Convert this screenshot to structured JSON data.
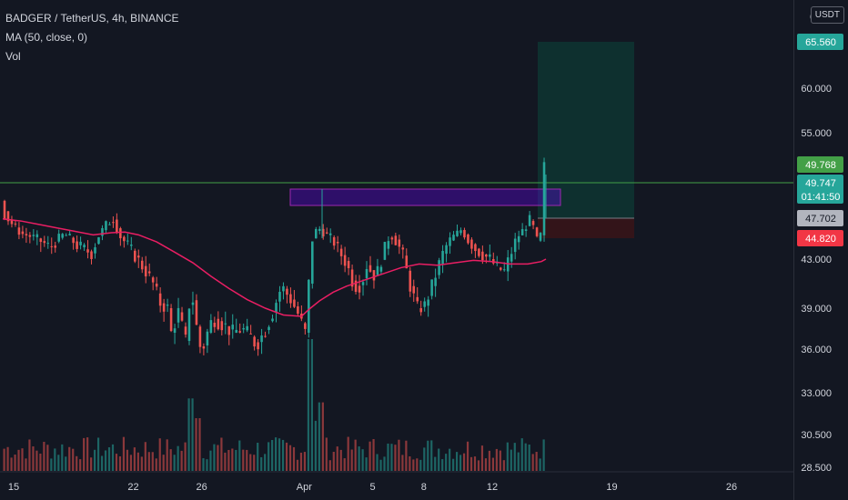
{
  "legend": {
    "symbol": "BADGER / TetherUS, 4h, BINANCE",
    "ma": "MA (50, close, 0)",
    "vol": "Vol"
  },
  "currency_button": "USDT",
  "chart_data": {
    "type": "candlestick",
    "symbol": "BADGER / TetherUS",
    "interval": "4h",
    "exchange": "BINANCE",
    "price_scale": {
      "ticks": [
        {
          "value": 60.0,
          "label": "60.000"
        },
        {
          "value": 55.0,
          "label": "55.000"
        },
        {
          "value": 43.0,
          "label": "43.000"
        },
        {
          "value": 39.0,
          "label": "39.000"
        },
        {
          "value": 36.0,
          "label": "36.000"
        },
        {
          "value": 33.0,
          "label": "33.000"
        },
        {
          "value": 30.5,
          "label": "30.500"
        },
        {
          "value": 28.5,
          "label": "28.500"
        }
      ],
      "top_cut_label": "6"
    },
    "price_badges": [
      {
        "value": 65.56,
        "label": "65.560",
        "color": "#26a69a"
      },
      {
        "value": 49.768,
        "label": "49.768",
        "color": "#43a047"
      },
      {
        "value": 49.747,
        "label": "49.747",
        "sub": "01:41:50",
        "color": "#26a69a"
      },
      {
        "value": 47.702,
        "label": "47.702",
        "color": "#b2b5be"
      },
      {
        "value": 44.82,
        "label": "44.820",
        "color": "#f23645"
      }
    ],
    "time_scale": [
      {
        "label": "15",
        "day": 15
      },
      {
        "label": "22",
        "day": 22
      },
      {
        "label": "26",
        "day": 26
      },
      {
        "label": "Apr",
        "day": 32
      },
      {
        "label": "5",
        "day": 36
      },
      {
        "label": "8",
        "day": 39
      },
      {
        "label": "12",
        "day": 43
      },
      {
        "label": "19",
        "day": 50
      },
      {
        "label": "26",
        "day": 57
      }
    ],
    "horizontal_line": {
      "value": 49.768,
      "color": "#43a047"
    },
    "resistance_box": {
      "top": 49.3,
      "bottom": 47.9,
      "color": "#9c27b0"
    },
    "long_position": {
      "entry": 47.702,
      "target": 65.56,
      "stop": 44.82
    },
    "ma_color": "#e91e63",
    "up_color": "#26a69a",
    "down_color": "#ef5350",
    "candles_start": 48.7,
    "candle_path": [
      [
        48.7,
        0
      ],
      [
        47.5,
        8
      ],
      [
        45.5,
        22
      ],
      [
        44.8,
        40
      ],
      [
        44.0,
        54
      ],
      [
        45.4,
        70
      ],
      [
        44.2,
        84
      ],
      [
        43.5,
        100
      ],
      [
        46.8,
        116
      ],
      [
        47.5,
        124
      ],
      [
        45.0,
        132
      ],
      [
        43.3,
        148
      ],
      [
        42.0,
        160
      ],
      [
        41.0,
        168
      ],
      [
        39.4,
        176
      ],
      [
        39.0,
        184
      ],
      [
        37.2,
        188
      ],
      [
        38.7,
        196
      ],
      [
        36.6,
        204
      ],
      [
        40.6,
        210
      ],
      [
        38.7,
        214
      ],
      [
        36.6,
        218
      ],
      [
        35.8,
        222
      ],
      [
        37.2,
        228
      ],
      [
        38.3,
        234
      ],
      [
        37.8,
        246
      ],
      [
        37.2,
        256
      ],
      [
        37.5,
        266
      ],
      [
        36.9,
        276
      ],
      [
        36.3,
        282
      ],
      [
        37.4,
        292
      ],
      [
        38.7,
        300
      ],
      [
        40.8,
        310
      ],
      [
        39.7,
        320
      ],
      [
        38.6,
        328
      ],
      [
        37.2,
        336
      ],
      [
        44.8,
        344
      ],
      [
        46.4,
        350
      ],
      [
        45.4,
        358
      ],
      [
        44.8,
        366
      ],
      [
        43.6,
        374
      ],
      [
        42.6,
        382
      ],
      [
        40.8,
        390
      ],
      [
        40.9,
        398
      ],
      [
        42.5,
        404
      ],
      [
        41.5,
        414
      ],
      [
        43.9,
        424
      ],
      [
        45.4,
        430
      ],
      [
        44.7,
        436
      ],
      [
        43.3,
        444
      ],
      [
        40.8,
        452
      ],
      [
        39.0,
        460
      ],
      [
        39.2,
        468
      ],
      [
        40.8,
        476
      ],
      [
        42.6,
        484
      ],
      [
        43.9,
        490
      ],
      [
        45.1,
        500
      ],
      [
        46.0,
        508
      ],
      [
        44.7,
        516
      ],
      [
        43.9,
        524
      ],
      [
        43.4,
        532
      ],
      [
        43.0,
        540
      ],
      [
        42.3,
        548
      ],
      [
        42.0,
        556
      ],
      [
        43.2,
        562
      ],
      [
        44.9,
        570
      ],
      [
        46.2,
        578
      ],
      [
        47.3,
        584
      ],
      [
        45.9,
        590
      ],
      [
        43.3,
        594
      ],
      [
        46.2,
        597
      ],
      [
        49.75,
        600
      ]
    ],
    "ma_path": [
      [
        47.6,
        0
      ],
      [
        47.3,
        20
      ],
      [
        46.8,
        40
      ],
      [
        46.3,
        60
      ],
      [
        45.8,
        80
      ],
      [
        45.3,
        100
      ],
      [
        45.6,
        120
      ],
      [
        45.7,
        135
      ],
      [
        45.3,
        150
      ],
      [
        44.5,
        170
      ],
      [
        43.6,
        190
      ],
      [
        42.7,
        210
      ],
      [
        41.6,
        230
      ],
      [
        40.6,
        250
      ],
      [
        39.7,
        270
      ],
      [
        39.0,
        290
      ],
      [
        38.5,
        310
      ],
      [
        38.4,
        330
      ],
      [
        38.9,
        338
      ],
      [
        39.6,
        350
      ],
      [
        40.3,
        365
      ],
      [
        40.8,
        380
      ],
      [
        41.3,
        400
      ],
      [
        41.8,
        420
      ],
      [
        42.3,
        440
      ],
      [
        42.6,
        460
      ],
      [
        42.5,
        480
      ],
      [
        42.7,
        500
      ],
      [
        42.9,
        520
      ],
      [
        42.8,
        540
      ],
      [
        42.6,
        560
      ],
      [
        42.6,
        580
      ],
      [
        42.8,
        595
      ],
      [
        43.0,
        600
      ]
    ],
    "volume_spikes": [
      [
        205,
        0.55
      ],
      [
        214,
        0.4
      ],
      [
        339,
        1.0
      ],
      [
        346,
        0.38
      ],
      [
        350,
        0.52
      ],
      [
        600,
        0.42
      ],
      [
        578,
        0.2
      ]
    ]
  }
}
